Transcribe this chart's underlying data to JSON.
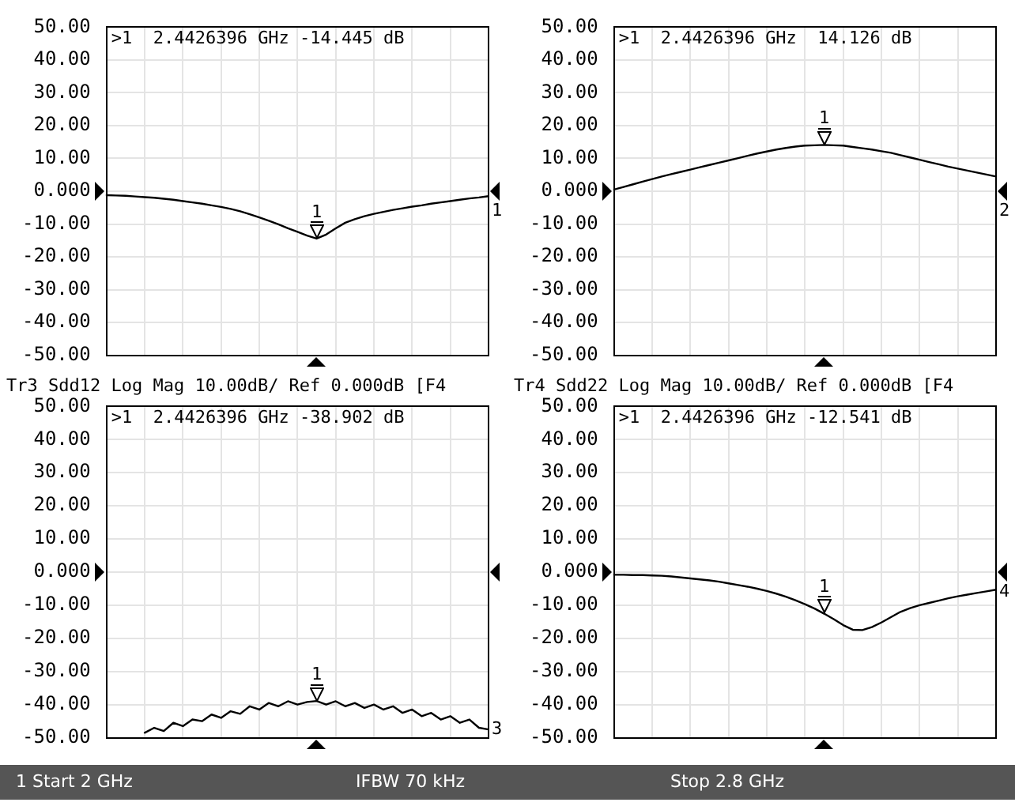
{
  "chart_data": [
    {
      "type": "line",
      "annotations": [
        ">1  2.4426396 GHz -14.445 dB",
        "1",
        {
          "text": "1",
          "y": -14.445
        }
      ],
      "categories": [
        null,
        null,
        null,
        null,
        null,
        null,
        null,
        null,
        null,
        null,
        null,
        null,
        null,
        null,
        null,
        null,
        null,
        null,
        null,
        null,
        null,
        null,
        null,
        null,
        null,
        null,
        null,
        null,
        null,
        null,
        null,
        null,
        null,
        null,
        null,
        null,
        null,
        null,
        null,
        null,
        null
      ],
      "series": [
        {
          "color": "#000000",
          "values": [
            -1.2,
            -1.3,
            -1.4,
            -1.6,
            -1.8,
            -2.0,
            -2.3,
            -2.6,
            -3.0,
            -3.4,
            -3.8,
            -4.3,
            -4.8,
            -5.4,
            -6.1,
            -7.0,
            -8.0,
            -9.0,
            -10.1,
            -11.3,
            -12.4,
            -13.5,
            -14.445,
            -13.2,
            -11.3,
            -9.6,
            -8.5,
            -7.6,
            -6.9,
            -6.3,
            -5.7,
            -5.2,
            -4.7,
            -4.3,
            -3.8,
            -3.4,
            -3.0,
            -2.6,
            -2.2,
            -1.9,
            -1.5
          ]
        }
      ],
      "ylim": [
        -50,
        50
      ],
      "yticks": [
        {
          "value": 50,
          "label": "50.00"
        },
        {
          "value": 40,
          "label": "40.00"
        },
        {
          "value": 30,
          "label": "30.00"
        },
        {
          "value": 20,
          "label": "20.00"
        },
        {
          "value": 10,
          "label": "10.00"
        },
        {
          "value": 0,
          "label": "0.000"
        },
        {
          "value": -10,
          "label": "-10.00"
        },
        {
          "value": -20,
          "label": "-20.00"
        },
        {
          "value": -30,
          "label": "-30.00"
        },
        {
          "value": -40,
          "label": "-40.00"
        },
        {
          "value": -50,
          "label": "-50.00"
        }
      ],
      "grid": true,
      "tick_labels": "y",
      "legend": false,
      "marker": "none",
      "line_style": "solid"
    },
    {
      "type": "line",
      "annotations": [
        ">1  2.4426396 GHz  14.126 dB",
        "2",
        {
          "text": "1",
          "y": 14.126
        }
      ],
      "categories": [
        null,
        null,
        null,
        null,
        null,
        null,
        null,
        null,
        null,
        null,
        null,
        null,
        null,
        null,
        null,
        null,
        null,
        null,
        null,
        null,
        null,
        null,
        null,
        null,
        null,
        null,
        null,
        null,
        null,
        null,
        null,
        null,
        null,
        null,
        null,
        null,
        null,
        null,
        null,
        null,
        null
      ],
      "series": [
        {
          "color": "#000000",
          "values": [
            0.5,
            1.3,
            2.1,
            2.9,
            3.7,
            4.5,
            5.2,
            5.9,
            6.6,
            7.3,
            8.0,
            8.7,
            9.4,
            10.1,
            10.8,
            11.5,
            12.1,
            12.7,
            13.2,
            13.6,
            13.9,
            14.0,
            14.126,
            14.0,
            13.9,
            13.5,
            13.1,
            12.7,
            12.2,
            11.7,
            11.0,
            10.3,
            9.6,
            8.9,
            8.2,
            7.5,
            6.9,
            6.3,
            5.7,
            5.1,
            4.5
          ]
        }
      ],
      "ylim": [
        -50,
        50
      ],
      "yticks": [
        {
          "value": 50,
          "label": "50.00"
        },
        {
          "value": 40,
          "label": "40.00"
        },
        {
          "value": 30,
          "label": "30.00"
        },
        {
          "value": 20,
          "label": "20.00"
        },
        {
          "value": 10,
          "label": "10.00"
        },
        {
          "value": 0,
          "label": "0.000"
        },
        {
          "value": -10,
          "label": "-10.00"
        },
        {
          "value": -20,
          "label": "-20.00"
        },
        {
          "value": -30,
          "label": "-30.00"
        },
        {
          "value": -40,
          "label": "-40.00"
        },
        {
          "value": -50,
          "label": "-50.00"
        }
      ],
      "grid": true,
      "tick_labels": "y",
      "legend": false,
      "marker": "none",
      "line_style": "solid"
    },
    {
      "type": "line",
      "title": "Tr3 Sdd12 Log Mag 10.00dB/ Ref 0.000dB [F4",
      "annotations": [
        ">1  2.4426396 GHz -38.902 dB",
        "3",
        {
          "text": "1",
          "y": -38.902
        }
      ],
      "categories": [
        null,
        null,
        null,
        null,
        null,
        null,
        null,
        null,
        null,
        null,
        null,
        null,
        null,
        null,
        null,
        null,
        null,
        null,
        null,
        null,
        null,
        null,
        null,
        null,
        null,
        null,
        null,
        null,
        null,
        null,
        null,
        null,
        null,
        null,
        null,
        null,
        null,
        null,
        null,
        null,
        null
      ],
      "series": [
        {
          "color": "#000000",
          "values": [
            null,
            null,
            null,
            null,
            -48.5,
            -47,
            -48,
            -45.5,
            -46.5,
            -44.5,
            -45,
            -43,
            -44,
            -42,
            -42.8,
            -40.5,
            -41.5,
            -39.5,
            -40.5,
            -39,
            -40,
            -39.2,
            -38.902,
            -40,
            -39,
            -40.5,
            -39.5,
            -41,
            -40,
            -41.5,
            -40.5,
            -42.5,
            -41.5,
            -43.5,
            -42.5,
            -44.5,
            -43.5,
            -45.5,
            -44.5,
            -47,
            -47.5
          ]
        }
      ],
      "ylim": [
        -50,
        50
      ],
      "yticks": [
        {
          "value": 50,
          "label": "50.00"
        },
        {
          "value": 40,
          "label": "40.00"
        },
        {
          "value": 30,
          "label": "30.00"
        },
        {
          "value": 20,
          "label": "20.00"
        },
        {
          "value": 10,
          "label": "10.00"
        },
        {
          "value": 0,
          "label": "0.000"
        },
        {
          "value": -10,
          "label": "-10.00"
        },
        {
          "value": -20,
          "label": "-20.00"
        },
        {
          "value": -30,
          "label": "-30.00"
        },
        {
          "value": -40,
          "label": "-40.00"
        },
        {
          "value": -50,
          "label": "-50.00"
        }
      ],
      "grid": true,
      "tick_labels": "y",
      "legend": false,
      "marker": "none",
      "line_style": "solid"
    },
    {
      "type": "line",
      "title": "Tr4 Sdd22 Log Mag 10.00dB/ Ref 0.000dB [F4",
      "annotations": [
        ">1  2.4426396 GHz -12.541 dB",
        "4",
        "1 Start 2 GHz",
        "IFBW 70 kHz",
        "Stop 2.8 GHz",
        {
          "text": "1",
          "y": -12.541
        }
      ],
      "categories": [
        null,
        null,
        null,
        null,
        null,
        null,
        null,
        null,
        null,
        null,
        null,
        null,
        null,
        null,
        null,
        null,
        null,
        null,
        null,
        null,
        null,
        null,
        null,
        null,
        null,
        null,
        null,
        null,
        null,
        null,
        null,
        null,
        null,
        null,
        null,
        null,
        null,
        null,
        null,
        null,
        null
      ],
      "series": [
        {
          "color": "#000000",
          "values": [
            -0.8,
            -0.8,
            -0.9,
            -0.9,
            -1.0,
            -1.1,
            -1.3,
            -1.6,
            -1.9,
            -2.2,
            -2.5,
            -2.9,
            -3.4,
            -3.9,
            -4.4,
            -5.0,
            -5.7,
            -6.5,
            -7.4,
            -8.5,
            -9.7,
            -11.0,
            -12.541,
            -14.2,
            -16.0,
            -17.4,
            -17.5,
            -16.6,
            -15.2,
            -13.6,
            -12.0,
            -10.9,
            -10.0,
            -9.3,
            -8.6,
            -7.9,
            -7.3,
            -6.8,
            -6.3,
            -5.8,
            -5.3
          ]
        }
      ],
      "ylim": [
        -50,
        50
      ],
      "yticks": [
        {
          "value": 50,
          "label": "50.00"
        },
        {
          "value": 40,
          "label": "40.00"
        },
        {
          "value": 30,
          "label": "30.00"
        },
        {
          "value": 20,
          "label": "20.00"
        },
        {
          "value": 10,
          "label": "10.00"
        },
        {
          "value": 0,
          "label": "0.000"
        },
        {
          "value": -10,
          "label": "-10.00"
        },
        {
          "value": -20,
          "label": "-20.00"
        },
        {
          "value": -30,
          "label": "-30.00"
        },
        {
          "value": -40,
          "label": "-40.00"
        },
        {
          "value": -50,
          "label": "-50.00"
        }
      ],
      "grid": true,
      "tick_labels": "y",
      "legend": false,
      "marker": "none",
      "line_style": "solid"
    }
  ]
}
